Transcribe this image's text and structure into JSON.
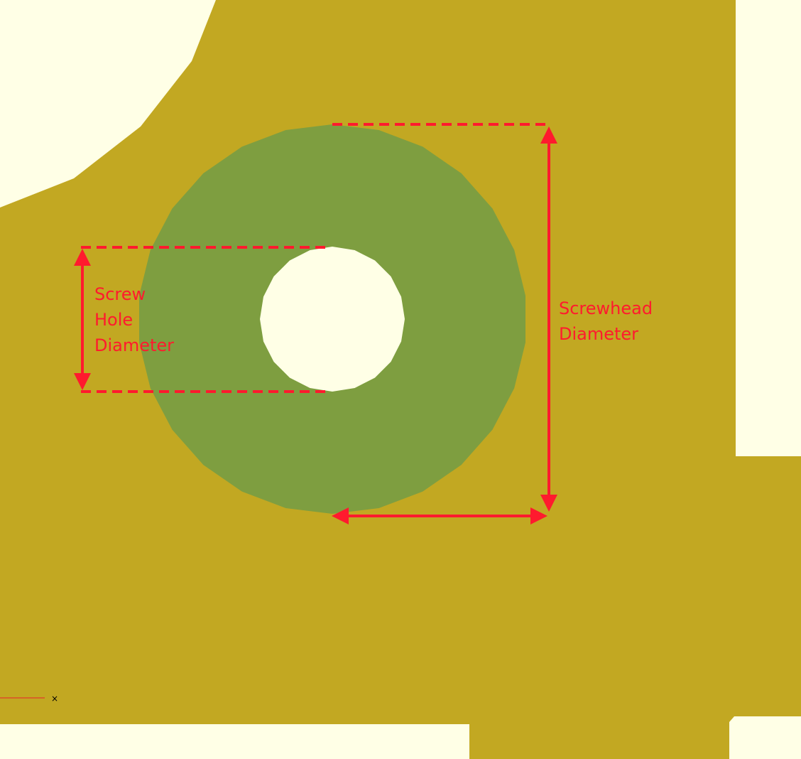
{
  "labels": {
    "screw_hole": [
      "Screw",
      "Hole",
      "Diameter"
    ],
    "screwhead": [
      "Screwhead",
      "Diameter"
    ]
  },
  "origin_marker": "×",
  "colors": {
    "background": "#FFFFE6",
    "plate": "#C2A822",
    "washer": "#7E9E40",
    "hole": "#FFFFE6",
    "dimension": "#FF1A2E"
  }
}
